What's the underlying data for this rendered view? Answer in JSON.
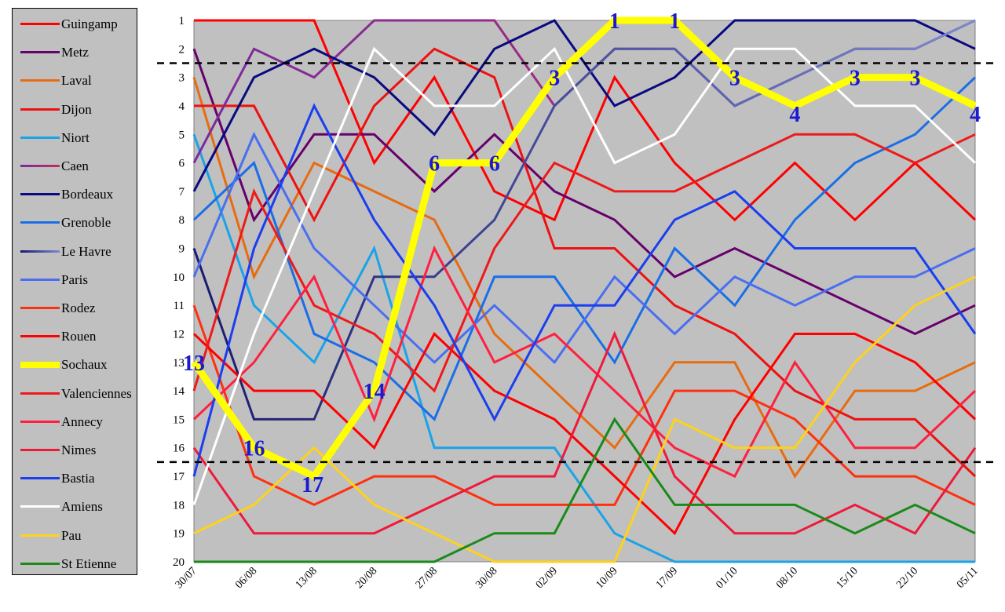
{
  "chart_data": {
    "type": "line",
    "x_labels": [
      "30/07",
      "06/08",
      "13/08",
      "20/08",
      "27/08",
      "30/08",
      "02/09",
      "10/09",
      "17/09",
      "01/10",
      "08/10",
      "15/10",
      "22/10",
      "05/11"
    ],
    "y_ticks": [
      1,
      2,
      3,
      4,
      5,
      6,
      7,
      8,
      9,
      10,
      11,
      12,
      13,
      14,
      15,
      16,
      17,
      18,
      19,
      20
    ],
    "ylim": [
      1,
      20
    ],
    "y_reversed": true,
    "grid": false,
    "plot_background": "#c0c0c0",
    "legend_position": "left",
    "reference_lines": [
      2.5,
      16.5
    ],
    "highlight_series": "Sochaux",
    "highlight_labels": [
      13,
      16,
      17,
      14,
      6,
      6,
      3,
      1,
      1,
      3,
      4,
      3,
      3,
      4
    ],
    "series": [
      {
        "name": "Guingamp",
        "color": "#ff0000",
        "style": "solid",
        "values": [
          1,
          1,
          1,
          6,
          3,
          7,
          8,
          3,
          6,
          8,
          6,
          8,
          6,
          8
        ]
      },
      {
        "name": "Metz",
        "color": "#66006b",
        "style": "solid",
        "values": [
          2,
          8,
          5,
          5,
          7,
          5,
          7,
          8,
          10,
          9,
          10,
          11,
          12,
          11
        ]
      },
      {
        "name": "Laval",
        "color": "#e86b10",
        "style": "solid",
        "values": [
          3,
          10,
          6,
          7,
          8,
          12,
          14,
          16,
          13,
          13,
          17,
          14,
          14,
          13
        ]
      },
      {
        "name": "Dijon",
        "color": "#ee1111",
        "style": "solid",
        "values": [
          4,
          4,
          8,
          4,
          2,
          3,
          9,
          9,
          11,
          12,
          14,
          15,
          15,
          17
        ]
      },
      {
        "name": "Niort",
        "color": "#1aa3e8",
        "style": "solid",
        "values": [
          5,
          11,
          13,
          9,
          16,
          16,
          16,
          19,
          20,
          20,
          20,
          20,
          20,
          20
        ]
      },
      {
        "name": "Caen",
        "color": "#9b3a8c",
        "style": "gradient",
        "values": [
          6,
          2,
          3,
          1,
          1,
          1,
          4,
          2,
          2,
          4,
          3,
          2,
          2,
          1
        ]
      },
      {
        "name": "Bordeaux",
        "color": "#0a0a80",
        "style": "solid",
        "values": [
          7,
          3,
          2,
          3,
          5,
          2,
          1,
          4,
          3,
          1,
          1,
          1,
          1,
          2
        ]
      },
      {
        "name": "Grenoble",
        "color": "#1a6ee8",
        "style": "solid",
        "values": [
          8,
          6,
          12,
          13,
          15,
          10,
          10,
          13,
          9,
          11,
          8,
          6,
          5,
          3
        ]
      },
      {
        "name": "Le Havre",
        "color": "#2a2a90",
        "style": "gradient",
        "values": [
          9,
          15,
          15,
          10,
          10,
          8,
          4,
          2,
          2,
          4,
          3,
          2,
          2,
          1
        ]
      },
      {
        "name": "Paris",
        "color": "#4a6ef0",
        "style": "solid",
        "values": [
          10,
          5,
          9,
          11,
          13,
          11,
          13,
          10,
          12,
          10,
          11,
          10,
          10,
          9
        ]
      },
      {
        "name": "Rodez",
        "color": "#ff3010",
        "style": "solid",
        "values": [
          11,
          17,
          18,
          17,
          17,
          18,
          18,
          18,
          14,
          14,
          15,
          17,
          17,
          18
        ]
      },
      {
        "name": "Rouen",
        "color": "#ff0000",
        "style": "solid",
        "values": [
          12,
          14,
          14,
          16,
          12,
          14,
          15,
          17,
          19,
          15,
          12,
          12,
          13,
          15
        ]
      },
      {
        "name": "Sochaux",
        "color": "#ffff00",
        "style": "solid",
        "values": [
          13,
          16,
          17,
          14,
          6,
          6,
          3,
          1,
          1,
          3,
          4,
          3,
          3,
          4
        ]
      },
      {
        "name": "Valenciennes",
        "color": "#ee1a1a",
        "style": "solid",
        "values": [
          14,
          7,
          11,
          12,
          14,
          9,
          6,
          7,
          7,
          6,
          5,
          5,
          6,
          5
        ]
      },
      {
        "name": "Annecy",
        "color": "#ff2040",
        "style": "solid",
        "values": [
          15,
          13,
          10,
          15,
          9,
          13,
          12,
          14,
          16,
          17,
          13,
          16,
          16,
          14
        ]
      },
      {
        "name": "Nimes",
        "color": "#ee1a3a",
        "style": "solid",
        "values": [
          16,
          19,
          19,
          19,
          18,
          17,
          17,
          12,
          17,
          19,
          19,
          18,
          19,
          16
        ]
      },
      {
        "name": "Bastia",
        "color": "#1a3ef0",
        "style": "solid",
        "values": [
          17,
          9,
          4,
          8,
          11,
          15,
          11,
          11,
          8,
          7,
          9,
          9,
          9,
          12
        ]
      },
      {
        "name": "Amiens",
        "color": "#ffffff",
        "style": "solid",
        "values": [
          18,
          12,
          7,
          2,
          4,
          4,
          2,
          6,
          5,
          2,
          2,
          4,
          4,
          6
        ]
      },
      {
        "name": "Pau",
        "color": "#ffd21a",
        "style": "solid",
        "values": [
          19,
          18,
          16,
          18,
          19,
          20,
          20,
          20,
          15,
          16,
          16,
          13,
          11,
          10
        ]
      },
      {
        "name": "St Etienne",
        "color": "#1a8a1a",
        "style": "solid",
        "values": [
          20,
          20,
          20,
          20,
          20,
          19,
          19,
          15,
          18,
          18,
          18,
          19,
          18,
          19
        ]
      }
    ]
  }
}
